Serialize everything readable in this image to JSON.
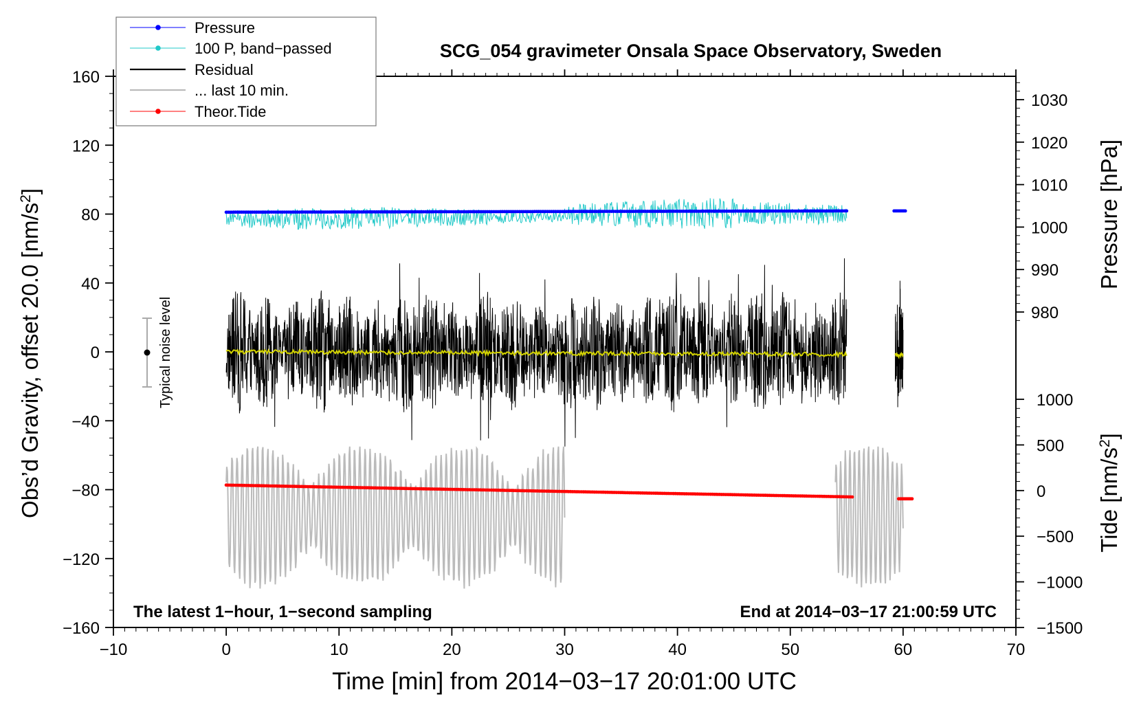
{
  "chart_data": {
    "type": "line",
    "title": "SCG_054 gravimeter Onsala Space Observatory, Sweden",
    "xlabel": "Time [min] from 2014−03−17 20:01:00 UTC",
    "ylabel": "Obs’d Gravity, offset 20.0 [nm/s",
    "ylabel_sup": "2",
    "ylabel_end": "]",
    "y2label": "Pressure [hPa]",
    "y3label": "Tide [nm/s",
    "y3label_sup": "2",
    "y3label_end": "]",
    "xlim": [
      -10,
      70
    ],
    "ylim": [
      -160,
      160
    ],
    "pressure_axis_range": [
      970,
      1035
    ],
    "tide_axis_range": [
      -1500,
      1100
    ],
    "x_ticks": [
      "−10",
      "0",
      "10",
      "20",
      "30",
      "40",
      "50",
      "60",
      "70"
    ],
    "x_tick_values": [
      -10,
      0,
      10,
      20,
      30,
      40,
      50,
      60,
      70
    ],
    "y_ticks": [
      "160",
      "120",
      "80",
      "40",
      "0",
      "−40",
      "−80",
      "−120",
      "−160"
    ],
    "y_tick_values": [
      160,
      120,
      80,
      40,
      0,
      -40,
      -80,
      -120,
      -160
    ],
    "pressure_ticks": [
      "1030",
      "1020",
      "1010",
      "1000",
      "990",
      "980"
    ],
    "pressure_tick_values": [
      1030,
      1020,
      1010,
      1000,
      990,
      980
    ],
    "tide_ticks": [
      "1000",
      "500",
      "0",
      "−500",
      "−1000",
      "−1500"
    ],
    "tide_tick_values": [
      1000,
      500,
      0,
      -500,
      -1000,
      -1500
    ],
    "legend": [
      {
        "label": "Pressure",
        "color": "#0000ff",
        "marker": true
      },
      {
        "label": "100 P, band−passed",
        "color": "#20c8c8",
        "marker": true
      },
      {
        "label": "Residual",
        "color": "#000000",
        "marker": false
      },
      {
        "label": "... last 10 min.",
        "color": "#bbbbbb",
        "marker": false
      },
      {
        "label": "Theor.Tide",
        "color": "#ff0000",
        "marker": true
      }
    ],
    "legend_position": "top-left",
    "annotations": {
      "bottom_left": "The latest 1−hour, 1−second sampling",
      "bottom_right": "End at 2014−03−17 21:00:59 UTC",
      "noise_label": "Typical noise level"
    },
    "noise_bar": {
      "x": -7,
      "center": 0,
      "half_range": 20
    },
    "series": [
      {
        "name": "Pressure",
        "color": "#0000ff",
        "unit": "hPa",
        "segments": [
          [
            0,
            55,
            1003.5,
            1003.8
          ],
          [
            59.2,
            60.2,
            1003.8,
            1003.8
          ]
        ]
      },
      {
        "name": "100 P, band-passed",
        "color": "#20c8c8",
        "unit": "nm/s2",
        "x_range": [
          0,
          55
        ],
        "baseline": 80,
        "amplitude": 8
      },
      {
        "name": "Residual",
        "color": "#000000",
        "unit": "nm/s2",
        "segments": [
          [
            0,
            55
          ],
          [
            59.3,
            60
          ]
        ],
        "envelope_range": [
          -55,
          55
        ]
      },
      {
        "name": "Residual smoothed",
        "color": "#d4d400",
        "unit": "nm/s2",
        "segments": [
          [
            0,
            55,
            0,
            -1.5
          ],
          [
            59.3,
            60,
            -2,
            -2
          ]
        ]
      },
      {
        "name": "... last 10 min.",
        "color": "#bbbbbb",
        "unit": "nm/s2",
        "segments": [
          [
            0,
            30
          ],
          [
            54,
            60
          ]
        ],
        "center": -95,
        "range": [
          -145,
          -55
        ]
      },
      {
        "name": "Theor.Tide",
        "color": "#ff0000",
        "unit": "nm/s2",
        "segments": [
          [
            0,
            55.5,
            60,
            -70
          ],
          [
            59.6,
            60.8,
            -90,
            -90
          ]
        ]
      }
    ]
  }
}
